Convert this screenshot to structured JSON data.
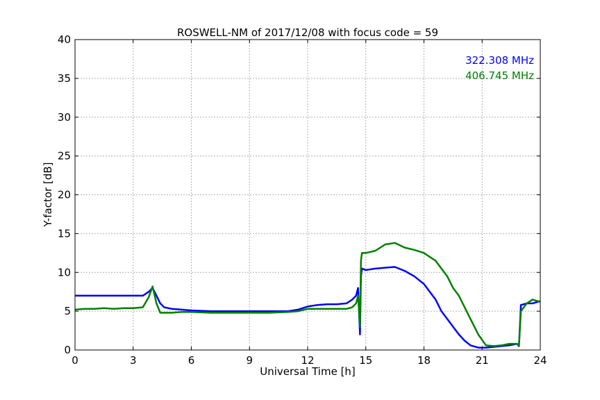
{
  "chart_data": {
    "type": "line",
    "title": "ROSWELL-NM of 2017/12/08 with focus code = 59",
    "xlabel": "Universal Time [h]",
    "ylabel": "Y-factor [dB]",
    "xlim": [
      0,
      24
    ],
    "ylim": [
      0,
      40
    ],
    "xticks": [
      0,
      3,
      6,
      9,
      12,
      15,
      18,
      21,
      24
    ],
    "yticks": [
      0,
      5,
      10,
      15,
      20,
      25,
      30,
      35,
      40
    ],
    "grid": true,
    "legend_placement": "top-right",
    "series": [
      {
        "name": "322.308 MHz",
        "color": "#0000ff",
        "x": [
          0.0,
          0.5,
          1.0,
          1.5,
          2.0,
          2.5,
          3.0,
          3.5,
          3.8,
          4.0,
          4.2,
          4.4,
          4.6,
          5.0,
          5.5,
          6.0,
          7.0,
          8.0,
          9.0,
          10.0,
          11.0,
          11.5,
          12.0,
          12.5,
          13.0,
          13.5,
          14.0,
          14.3,
          14.5,
          14.6,
          14.7,
          14.75,
          14.8,
          15.0,
          15.5,
          16.0,
          16.5,
          17.0,
          17.5,
          18.0,
          18.3,
          18.6,
          18.9,
          19.2,
          19.5,
          19.8,
          20.1,
          20.4,
          20.8,
          21.2,
          21.6,
          22.0,
          22.4,
          22.8,
          22.9,
          23.0,
          23.3,
          23.6,
          24.0
        ],
        "y": [
          7.0,
          7.0,
          7.0,
          7.0,
          7.0,
          7.0,
          7.0,
          7.0,
          7.5,
          8.0,
          7.0,
          6.0,
          5.5,
          5.3,
          5.2,
          5.1,
          5.0,
          5.0,
          5.0,
          5.0,
          5.0,
          5.2,
          5.6,
          5.8,
          5.9,
          5.9,
          6.0,
          6.5,
          7.0,
          8.0,
          2.0,
          9.5,
          10.5,
          10.3,
          10.5,
          10.6,
          10.7,
          10.2,
          9.5,
          8.5,
          7.5,
          6.5,
          5.0,
          4.0,
          3.0,
          2.0,
          1.2,
          0.6,
          0.3,
          0.3,
          0.4,
          0.5,
          0.6,
          0.8,
          0.5,
          5.8,
          6.0,
          6.0,
          6.3
        ]
      },
      {
        "name": "406.745 MHz",
        "color": "#008000",
        "x": [
          0.0,
          0.5,
          1.0,
          1.5,
          2.0,
          2.5,
          3.0,
          3.5,
          3.8,
          4.0,
          4.2,
          4.4,
          4.6,
          5.0,
          5.5,
          6.0,
          7.0,
          8.0,
          9.0,
          10.0,
          11.0,
          11.5,
          12.0,
          12.5,
          13.0,
          13.5,
          14.0,
          14.3,
          14.5,
          14.6,
          14.7,
          14.75,
          14.8,
          15.0,
          15.5,
          16.0,
          16.5,
          17.0,
          17.5,
          18.0,
          18.3,
          18.6,
          18.9,
          19.2,
          19.5,
          19.8,
          20.1,
          20.4,
          20.8,
          21.2,
          21.6,
          22.0,
          22.4,
          22.8,
          22.9,
          23.0,
          23.3,
          23.6,
          24.0
        ],
        "y": [
          5.2,
          5.3,
          5.3,
          5.4,
          5.3,
          5.4,
          5.4,
          5.5,
          6.8,
          8.2,
          6.0,
          4.8,
          4.8,
          4.8,
          4.9,
          4.9,
          4.8,
          4.8,
          4.8,
          4.8,
          4.9,
          5.0,
          5.3,
          5.3,
          5.3,
          5.3,
          5.3,
          5.5,
          6.0,
          7.0,
          3.0,
          11.5,
          12.5,
          12.5,
          12.8,
          13.6,
          13.8,
          13.2,
          12.9,
          12.5,
          12.0,
          11.5,
          10.5,
          9.5,
          8.0,
          7.0,
          5.5,
          4.0,
          2.0,
          0.6,
          0.5,
          0.6,
          0.8,
          0.8,
          0.6,
          5.0,
          6.0,
          6.5,
          6.2
        ]
      }
    ]
  }
}
